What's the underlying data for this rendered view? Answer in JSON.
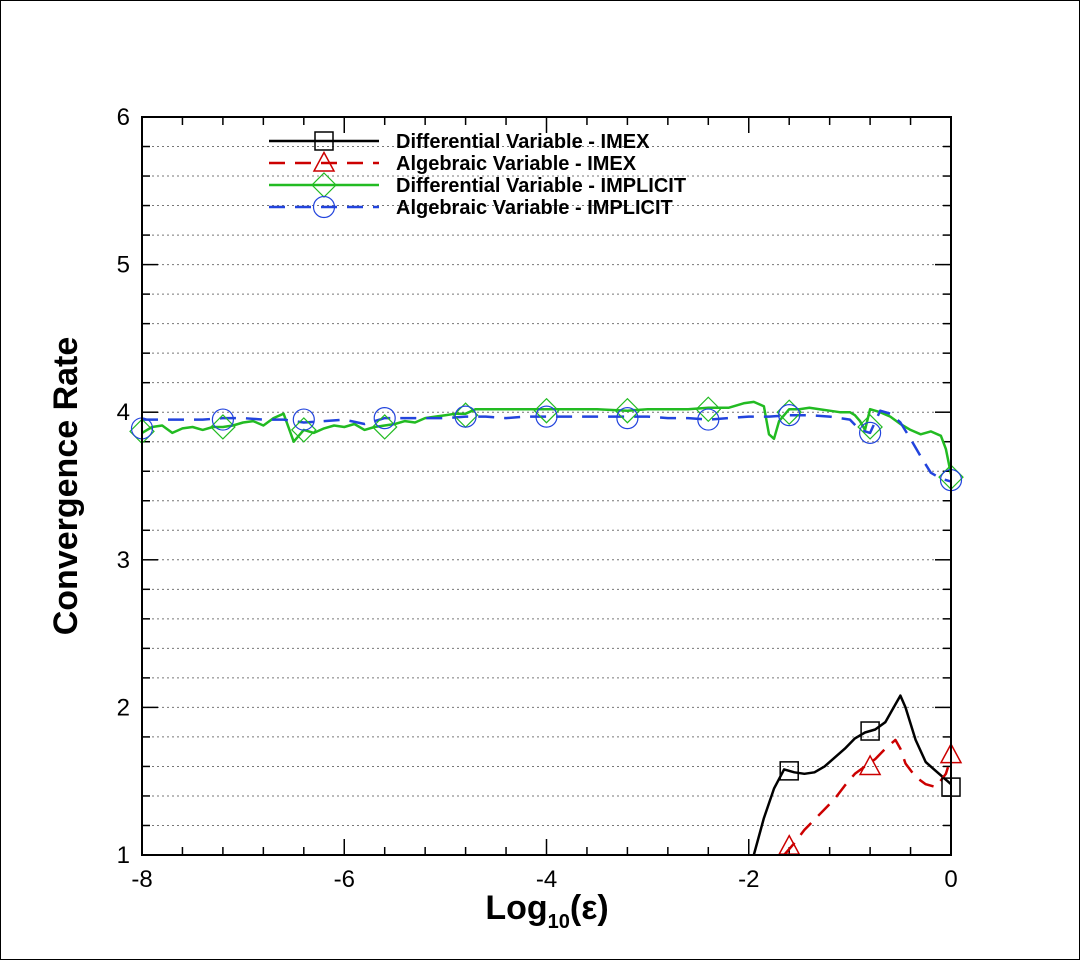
{
  "chart_data": {
    "type": "line",
    "xlabel_base": "Log",
    "xlabel_sub": "10",
    "xlabel_arg": "(ε)",
    "ylabel": "Convergence Rate",
    "xlim": [
      -8,
      0
    ],
    "ylim": [
      1,
      6
    ],
    "x_ticks": [
      -8,
      -6,
      -4,
      -2,
      0
    ],
    "y_ticks": [
      1,
      2,
      3,
      4,
      5,
      6
    ],
    "x_minor_step": 0.4,
    "y_minor_step": 0.2,
    "grid": "horizontal-dotted",
    "legend_position": "top-left-inside",
    "series": [
      {
        "name": "Differential Variable - IMEX",
        "color": "#000000",
        "dash": "solid",
        "marker": "square",
        "x": [
          -1.95,
          -1.85,
          -1.75,
          -1.65,
          -1.55,
          -1.45,
          -1.35,
          -1.25,
          -1.15,
          -1.05,
          -0.95,
          -0.85,
          -0.75,
          -0.65,
          -0.55,
          -0.5,
          -0.45,
          -0.35,
          -0.25,
          -0.15,
          0
        ],
        "y": [
          1.0,
          1.25,
          1.45,
          1.58,
          1.56,
          1.55,
          1.56,
          1.6,
          1.66,
          1.72,
          1.79,
          1.83,
          1.85,
          1.9,
          2.02,
          2.08,
          2.0,
          1.78,
          1.63,
          1.57,
          1.48
        ],
        "marker_x": [
          -1.6,
          -0.8,
          0
        ],
        "marker_y": [
          1.57,
          1.84,
          1.46
        ]
      },
      {
        "name": "Algebraic Variable - IMEX",
        "color": "#cc0000",
        "dash": "dashed",
        "marker": "triangle",
        "x": [
          -1.65,
          -1.55,
          -1.45,
          -1.35,
          -1.25,
          -1.15,
          -1.05,
          -0.95,
          -0.85,
          -0.75,
          -0.65,
          -0.55,
          -0.5,
          -0.45,
          -0.35,
          -0.25,
          -0.15,
          -0.05,
          0
        ],
        "y": [
          1.0,
          1.08,
          1.17,
          1.24,
          1.31,
          1.38,
          1.47,
          1.55,
          1.6,
          1.65,
          1.72,
          1.78,
          1.72,
          1.62,
          1.53,
          1.48,
          1.46,
          1.55,
          1.66
        ],
        "marker_x": [
          -1.6,
          -0.8,
          0
        ],
        "marker_y": [
          1.06,
          1.6,
          1.68
        ]
      },
      {
        "name": "Differential Variable - IMPLICIT",
        "color": "#22bb22",
        "dash": "solid",
        "marker": "diamond",
        "x": [
          -8.0,
          -7.9,
          -7.8,
          -7.7,
          -7.6,
          -7.5,
          -7.4,
          -7.3,
          -7.2,
          -7.1,
          -7.0,
          -6.9,
          -6.8,
          -6.7,
          -6.6,
          -6.5,
          -6.4,
          -6.3,
          -6.2,
          -6.1,
          -6.0,
          -5.9,
          -5.8,
          -5.7,
          -5.6,
          -5.5,
          -5.4,
          -5.3,
          -5.2,
          -5.1,
          -5.0,
          -4.9,
          -4.8,
          -4.7,
          -4.5,
          -4.2,
          -4.0,
          -3.8,
          -3.5,
          -3.2,
          -3.0,
          -2.8,
          -2.6,
          -2.4,
          -2.2,
          -2.05,
          -1.95,
          -1.85,
          -1.8,
          -1.75,
          -1.7,
          -1.6,
          -1.5,
          -1.4,
          -1.3,
          -1.2,
          -1.1,
          -1.0,
          -0.95,
          -0.9,
          -0.85,
          -0.8,
          -0.7,
          -0.6,
          -0.5,
          -0.4,
          -0.3,
          -0.2,
          -0.1,
          -0.05,
          0
        ],
        "y": [
          3.86,
          3.9,
          3.91,
          3.86,
          3.89,
          3.9,
          3.88,
          3.9,
          3.9,
          3.91,
          3.93,
          3.94,
          3.91,
          3.96,
          3.99,
          3.8,
          3.88,
          3.86,
          3.89,
          3.91,
          3.9,
          3.92,
          3.88,
          3.9,
          3.91,
          3.92,
          3.94,
          3.93,
          3.96,
          3.97,
          3.98,
          3.99,
          3.99,
          4.02,
          4.02,
          4.02,
          4.02,
          4.02,
          4.02,
          4.01,
          4.02,
          4.02,
          4.02,
          4.03,
          4.03,
          4.06,
          4.07,
          4.04,
          3.85,
          3.82,
          3.94,
          4.02,
          4.02,
          4.03,
          4.02,
          4.01,
          4.0,
          4.0,
          3.98,
          3.94,
          3.88,
          4.02,
          4.0,
          3.97,
          3.92,
          3.88,
          3.85,
          3.87,
          3.84,
          3.75,
          3.58
        ],
        "marker_x": [
          -8.0,
          -7.2,
          -6.4,
          -5.6,
          -4.8,
          -4.0,
          -3.2,
          -2.4,
          -1.6,
          -0.8,
          0
        ],
        "marker_y": [
          3.87,
          3.9,
          3.88,
          3.9,
          3.98,
          4.01,
          4.01,
          4.02,
          4.0,
          3.9,
          3.56
        ]
      },
      {
        "name": "Algebraic Variable - IMPLICIT",
        "color": "#2244dd",
        "dash": "dashed",
        "marker": "circle",
        "x": [
          -8.0,
          -7.8,
          -7.6,
          -7.4,
          -7.2,
          -7.0,
          -6.8,
          -6.6,
          -6.4,
          -6.2,
          -6.0,
          -5.8,
          -5.6,
          -5.4,
          -5.2,
          -5.0,
          -4.8,
          -4.6,
          -4.4,
          -4.2,
          -4.0,
          -3.8,
          -3.6,
          -3.4,
          -3.2,
          -3.0,
          -2.8,
          -2.6,
          -2.4,
          -2.2,
          -2.0,
          -1.8,
          -1.6,
          -1.4,
          -1.2,
          -1.0,
          -0.9,
          -0.8,
          -0.7,
          -0.6,
          -0.5,
          -0.4,
          -0.3,
          -0.2,
          -0.1,
          0
        ],
        "y": [
          3.95,
          3.95,
          3.95,
          3.95,
          3.96,
          3.96,
          3.95,
          3.95,
          3.93,
          3.94,
          3.95,
          3.92,
          3.96,
          3.96,
          3.96,
          3.96,
          3.97,
          3.97,
          3.96,
          3.97,
          3.97,
          3.97,
          3.97,
          3.97,
          3.97,
          3.97,
          3.96,
          3.96,
          3.95,
          3.96,
          3.97,
          3.97,
          3.98,
          3.98,
          3.97,
          3.95,
          3.88,
          3.86,
          4.01,
          3.99,
          3.93,
          3.82,
          3.7,
          3.59,
          3.55,
          3.53
        ],
        "marker_x": [
          -8.0,
          -7.2,
          -6.4,
          -5.6,
          -4.8,
          -4.0,
          -3.2,
          -2.4,
          -1.6,
          -0.8,
          0
        ],
        "marker_y": [
          3.89,
          3.95,
          3.95,
          3.96,
          3.97,
          3.97,
          3.96,
          3.95,
          3.98,
          3.86,
          3.54
        ]
      }
    ]
  }
}
